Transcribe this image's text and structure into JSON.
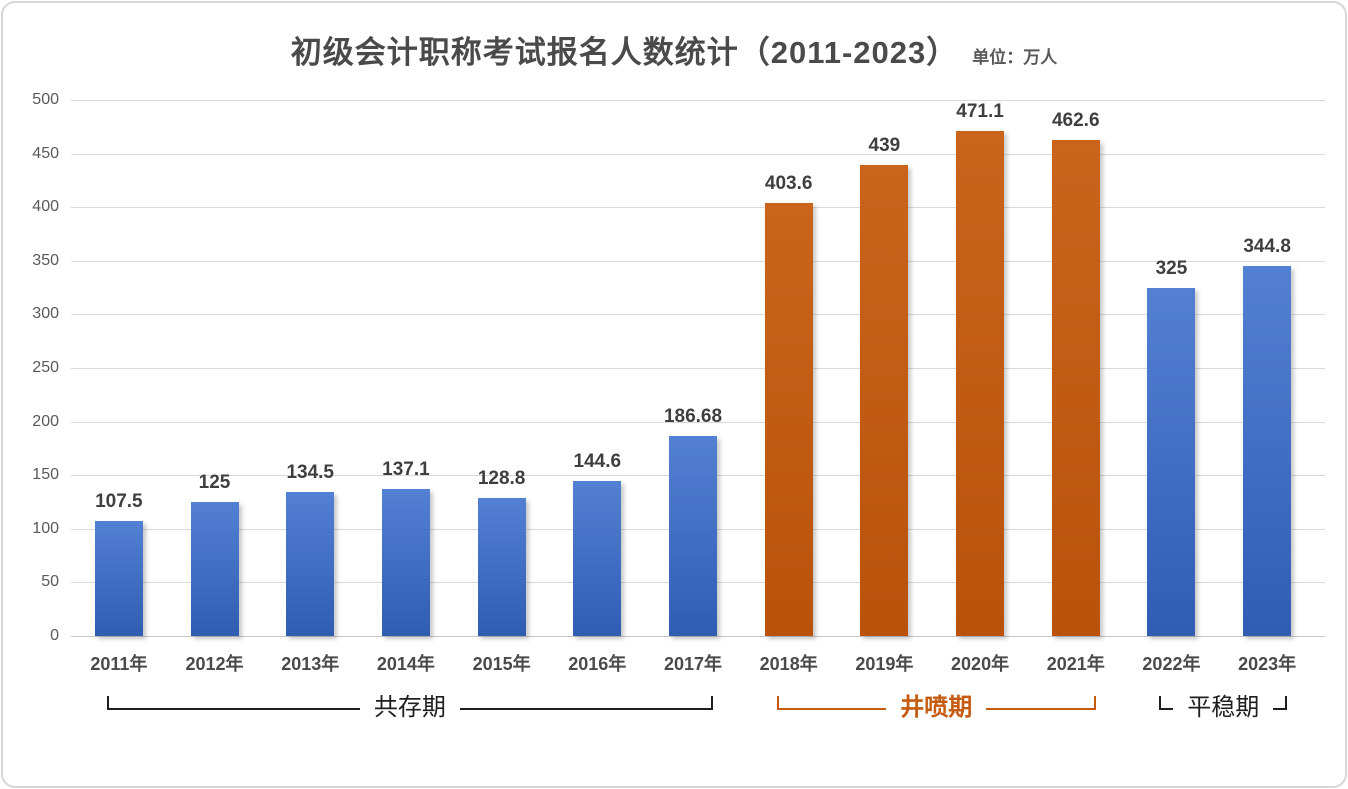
{
  "chart_data": {
    "type": "bar",
    "title": "初级会计职称考试报名人数统计（2011-2023）",
    "unit_label": "单位：万人",
    "categories": [
      "2011年",
      "2012年",
      "2013年",
      "2014年",
      "2015年",
      "2016年",
      "2017年",
      "2018年",
      "2019年",
      "2020年",
      "2021年",
      "2022年",
      "2023年"
    ],
    "values": [
      107.5,
      125,
      134.5,
      137.1,
      128.8,
      144.6,
      186.68,
      403.6,
      439,
      471.1,
      462.6,
      325,
      344.8
    ],
    "data_labels": [
      "107.5",
      "125",
      "134.5",
      "137.1",
      "128.8",
      "144.6",
      "186.68",
      "403.6",
      "439",
      "471.1",
      "462.6",
      "325",
      "344.8"
    ],
    "xlabel": "",
    "ylabel": "",
    "ylim": [
      0,
      500
    ],
    "y_ticks": [
      0,
      50,
      100,
      150,
      200,
      250,
      300,
      350,
      400,
      450,
      500
    ],
    "grid": true,
    "legend": "none",
    "colors": {
      "blue_bar_top": "#5380d3",
      "blue_bar_bottom": "#2e5db2",
      "orange_bar_top": "#ca641b",
      "orange_bar_bottom": "#ba520a",
      "gridline": "#d9d9d9",
      "axis_text": "#595959",
      "label_text": "#3f3f3f"
    },
    "groups": [
      {
        "label": "共存期",
        "start": 0,
        "end": 6,
        "color": "#1f1f1f",
        "bold": false,
        "bar_gradient": [
          "#5380d3",
          "#2e5db2"
        ]
      },
      {
        "label": "井喷期",
        "start": 7,
        "end": 10,
        "color": "#c55a11",
        "bold": true,
        "bar_gradient": [
          "#ca641b",
          "#ba520a"
        ]
      },
      {
        "label": "平稳期",
        "start": 11,
        "end": 12,
        "color": "#1f1f1f",
        "bold": false,
        "bar_gradient": [
          "#5380d3",
          "#2e5db2"
        ]
      }
    ]
  }
}
